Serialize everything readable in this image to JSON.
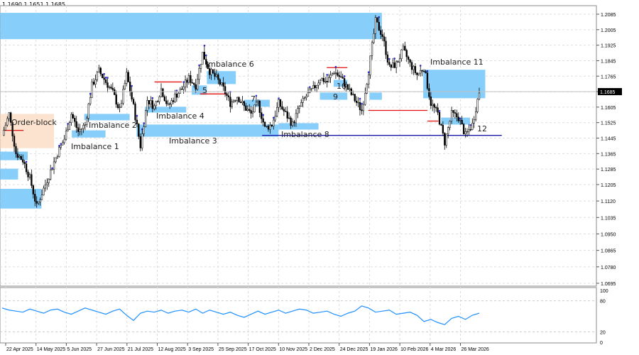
{
  "header": {
    "ohlc": "1.1690 1.1651 1.1685"
  },
  "chart_data": [
    {
      "type": "candlestick",
      "ylim": [
        1.0695,
        1.2085
      ],
      "y_ticks": [
        "1.2085",
        "1.2005",
        "1.1925",
        "1.1845",
        "1.1765",
        "1.1685",
        "1.1605",
        "1.1525",
        "1.1445",
        "1.1365",
        "1.1285",
        "1.1205",
        "1.1120",
        "1.1035",
        "1.0950",
        "1.0865",
        "1.0780",
        "1.0695"
      ],
      "current_price": "1.1685",
      "x_ticks": [
        "22 Apr 2025",
        "14 May 2025",
        "5 Jun 2025",
        "27 Jun 2025",
        "21 Jul 2025",
        "12 Aug 2025",
        "3 Sep 2025",
        "25 Sep 2025",
        "17 Oct 2025",
        "10 Nov 2025",
        "2 Dec 2025",
        "24 Dec 2025",
        "19 Jan 2026",
        "10 Feb 2026",
        "4 Mar 2026",
        "26 Mar 2026"
      ],
      "closes": [
        1.1459,
        1.157,
        1.1367,
        1.1331,
        1.1239,
        1.1091,
        1.1183,
        1.1275,
        1.1367,
        1.1441,
        1.157,
        1.1478,
        1.1515,
        1.1717,
        1.1791,
        1.1735,
        1.168,
        1.1588,
        1.1772,
        1.1607,
        1.1404,
        1.1643,
        1.1607,
        1.1699,
        1.1607,
        1.1662,
        1.1699,
        1.1754,
        1.1717,
        1.1883,
        1.1791,
        1.1754,
        1.1699,
        1.1625,
        1.1662,
        1.1607,
        1.157,
        1.1625,
        1.1496,
        1.1515,
        1.1625,
        1.157,
        1.1515,
        1.1607,
        1.1662,
        1.1699,
        1.1754,
        1.1735,
        1.1791,
        1.1754,
        1.1699,
        1.1643,
        1.1588,
        1.1791,
        1.2048,
        1.1975,
        1.1809,
        1.1827,
        1.1901,
        1.1827,
        1.1772,
        1.1809,
        1.1625,
        1.157,
        1.1423,
        1.157,
        1.1551,
        1.1459,
        1.1515,
        1.1685
      ],
      "zones": [
        {
          "label": "",
          "start": "2025-04-18",
          "end": "2026-01-28",
          "top": 1.2092,
          "bottom": 1.1956,
          "color": "#87cefa"
        },
        {
          "label": "Order-block",
          "start": "2025-04-18",
          "end": "2025-05-27",
          "top": 1.157,
          "bottom": 1.1393,
          "color": "#fbe3cf"
        },
        {
          "label": "",
          "start": "2025-04-18",
          "end": "2025-05-08",
          "top": 1.1375,
          "bottom": 1.1331,
          "color": "#87cefa"
        },
        {
          "label": "",
          "start": "2025-04-18",
          "end": "2025-05-01",
          "top": 1.1287,
          "bottom": 1.1231,
          "color": "#87cefa"
        },
        {
          "label": "",
          "start": "2025-04-18",
          "end": "2025-05-18",
          "top": 1.1183,
          "bottom": 1.1081,
          "color": "#87cefa"
        },
        {
          "label": "Imbalance 1",
          "start": "2025-06-09",
          "end": "2025-07-04",
          "top": 1.1485,
          "bottom": 1.1448,
          "color": "#87cefa"
        },
        {
          "label": "Imbalance 2",
          "start": "2025-06-18",
          "end": "2025-07-23",
          "top": 1.157,
          "bottom": 1.1537,
          "color": "#87cefa"
        },
        {
          "label": "Imbalance 3",
          "start": "2025-07-28",
          "end": "2025-11-10",
          "top": 1.1515,
          "bottom": 1.1452,
          "color": "#87cefa"
        },
        {
          "label": "Imbalance 4",
          "start": "2025-08-03",
          "end": "2025-09-02",
          "top": 1.1607,
          "bottom": 1.1577,
          "color": "#87cefa"
        },
        {
          "label": "5",
          "start": "2025-09-06",
          "end": "2025-09-17",
          "top": 1.1717,
          "bottom": 1.1669,
          "color": "#87cefa"
        },
        {
          "label": "Imbalance 6",
          "start": "2025-09-17",
          "end": "2025-10-08",
          "top": 1.1791,
          "bottom": 1.1724,
          "color": "#87cefa"
        },
        {
          "label": "7",
          "start": "2025-10-14",
          "end": "2025-11-03",
          "top": 1.1643,
          "bottom": 1.1607,
          "color": "#87cefa"
        },
        {
          "label": "Imbalance 8",
          "start": "2025-11-10",
          "end": "2025-12-09",
          "top": 1.1522,
          "bottom": 1.1489,
          "color": "#87cefa"
        },
        {
          "label": "9",
          "start": "2025-12-10",
          "end": "2025-12-31",
          "top": 1.168,
          "bottom": 1.1643,
          "color": "#87cefa"
        },
        {
          "label": "10",
          "start": "2025-12-20",
          "end": "2025-12-31",
          "top": 1.1746,
          "bottom": 1.171,
          "color": "#87cefa"
        },
        {
          "label": "",
          "start": "2026-01-19",
          "end": "2026-01-28",
          "top": 1.168,
          "bottom": 1.1643,
          "color": "#87cefa"
        },
        {
          "label": "Imbalance 11",
          "start": "2026-02-27",
          "end": "2026-04-13",
          "top": 1.1798,
          "bottom": 1.1651,
          "color": "#87cefa"
        },
        {
          "label": "12",
          "start": "2026-03-12",
          "end": "2026-04-02",
          "top": 1.1551,
          "bottom": 1.1515,
          "color": "#87cefa"
        }
      ],
      "levels": [
        {
          "start": "2025-04-20",
          "end": "2025-05-05",
          "price": 1.1485,
          "color": "#e01010"
        },
        {
          "start": "2025-08-10",
          "end": "2025-08-30",
          "price": 1.1735,
          "color": "#e01010"
        },
        {
          "start": "2025-09-12",
          "end": "2025-10-02",
          "price": 1.1673,
          "color": "#e01010"
        },
        {
          "start": "2025-12-15",
          "end": "2025-12-31",
          "price": 1.1809,
          "color": "#e01010"
        },
        {
          "start": "2026-01-18",
          "end": "2026-03-02",
          "price": 1.1588,
          "color": "#e01010"
        },
        {
          "start": "2026-03-02",
          "end": "2026-03-10",
          "price": 1.1533,
          "color": "#e01010"
        },
        {
          "start": "2025-10-28",
          "end": "2026-04-25",
          "price": 1.1459,
          "color": "#1a1aa8"
        }
      ]
    },
    {
      "type": "line",
      "ylim": [
        0,
        100
      ],
      "y_ticks": [
        "100",
        "80",
        "20",
        "0"
      ],
      "values": [
        66,
        62,
        60,
        58,
        64,
        60,
        56,
        62,
        64,
        58,
        54,
        60,
        66,
        62,
        58,
        54,
        60,
        64,
        52,
        42,
        56,
        60,
        58,
        62,
        56,
        60,
        62,
        58,
        64,
        56,
        62,
        58,
        54,
        58,
        52,
        48,
        54,
        60,
        54,
        58,
        62,
        56,
        60,
        64,
        62,
        56,
        58,
        60,
        54,
        50,
        56,
        60,
        70,
        66,
        58,
        60,
        62,
        54,
        56,
        58,
        52,
        40,
        44,
        38,
        34,
        46,
        50,
        44,
        52,
        56
      ],
      "color": "#1e90ff"
    }
  ]
}
